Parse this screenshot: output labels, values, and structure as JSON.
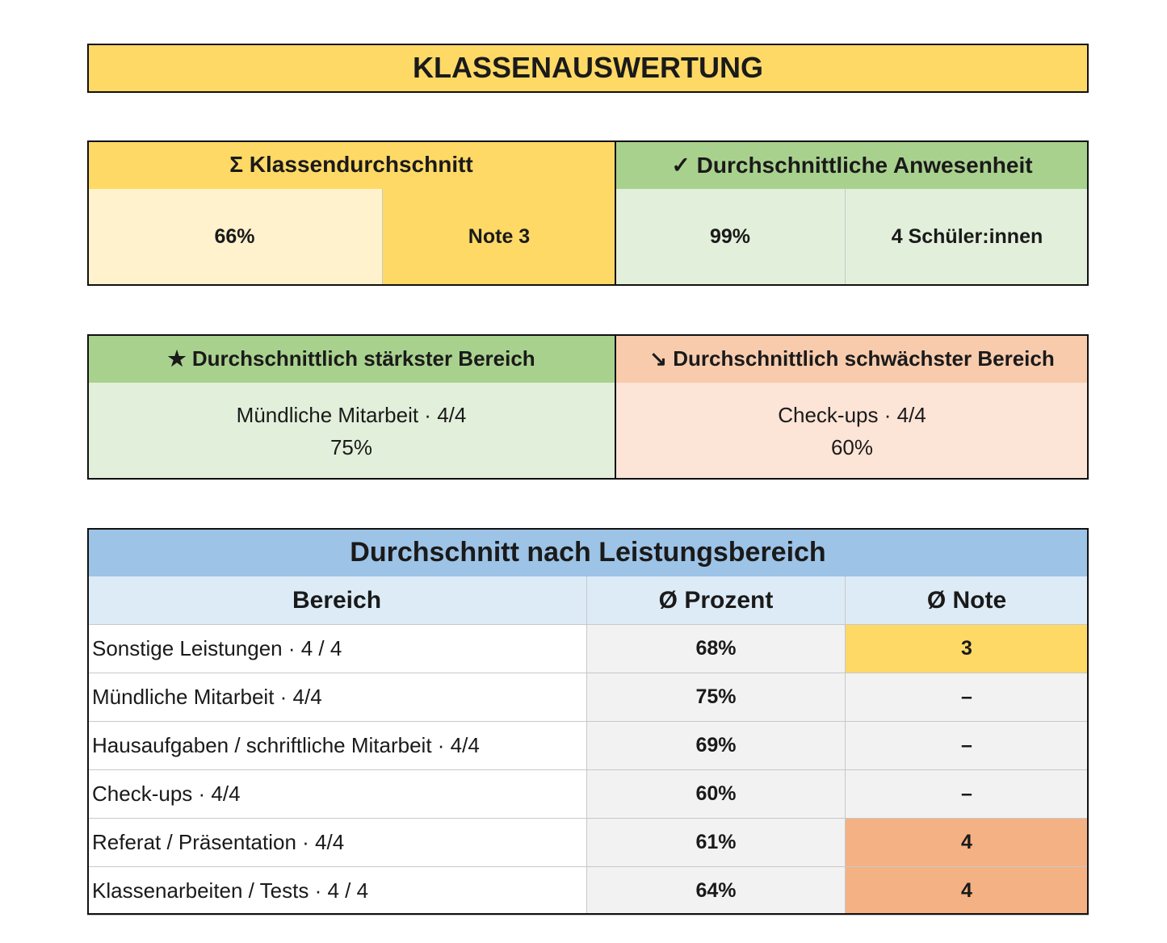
{
  "title": "KLASSENAUSWERTUNG",
  "summary": {
    "average": {
      "header": "Σ Klassendurchschnitt",
      "percent": "66%",
      "grade": "Note 3"
    },
    "attendance": {
      "header": "✓ Durchschnittliche Anwesenheit",
      "percent": "99%",
      "students": "4 Schüler:innen"
    }
  },
  "areas": {
    "strongest": {
      "header": "★ Durchschnittlich stärkster Bereich",
      "name": "Mündliche Mitarbeit · 4/4",
      "percent": "75%"
    },
    "weakest": {
      "header": "↘ Durchschnittlich schwächster Bereich",
      "name": "Check-ups · 4/4",
      "percent": "60%"
    }
  },
  "table": {
    "title": "Durchschnitt nach Leistungsbereich",
    "columns": [
      "Bereich",
      "Ø Prozent",
      "Ø Note"
    ],
    "rows": [
      [
        "Sonstige Leistungen · 4 / 4",
        "68%",
        "3"
      ],
      [
        "Mündliche Mitarbeit · 4/4",
        "75%",
        "–"
      ],
      [
        "Hausaufgaben / schriftliche Mitarbeit · 4/4",
        "69%",
        "–"
      ],
      [
        "Check-ups · 4/4",
        "60%",
        "–"
      ],
      [
        "Referat / Präsentation · 4/4",
        "61%",
        "4"
      ],
      [
        "Klassenarbeiten / Tests · 4 / 4",
        "64%",
        "4"
      ]
    ]
  }
}
